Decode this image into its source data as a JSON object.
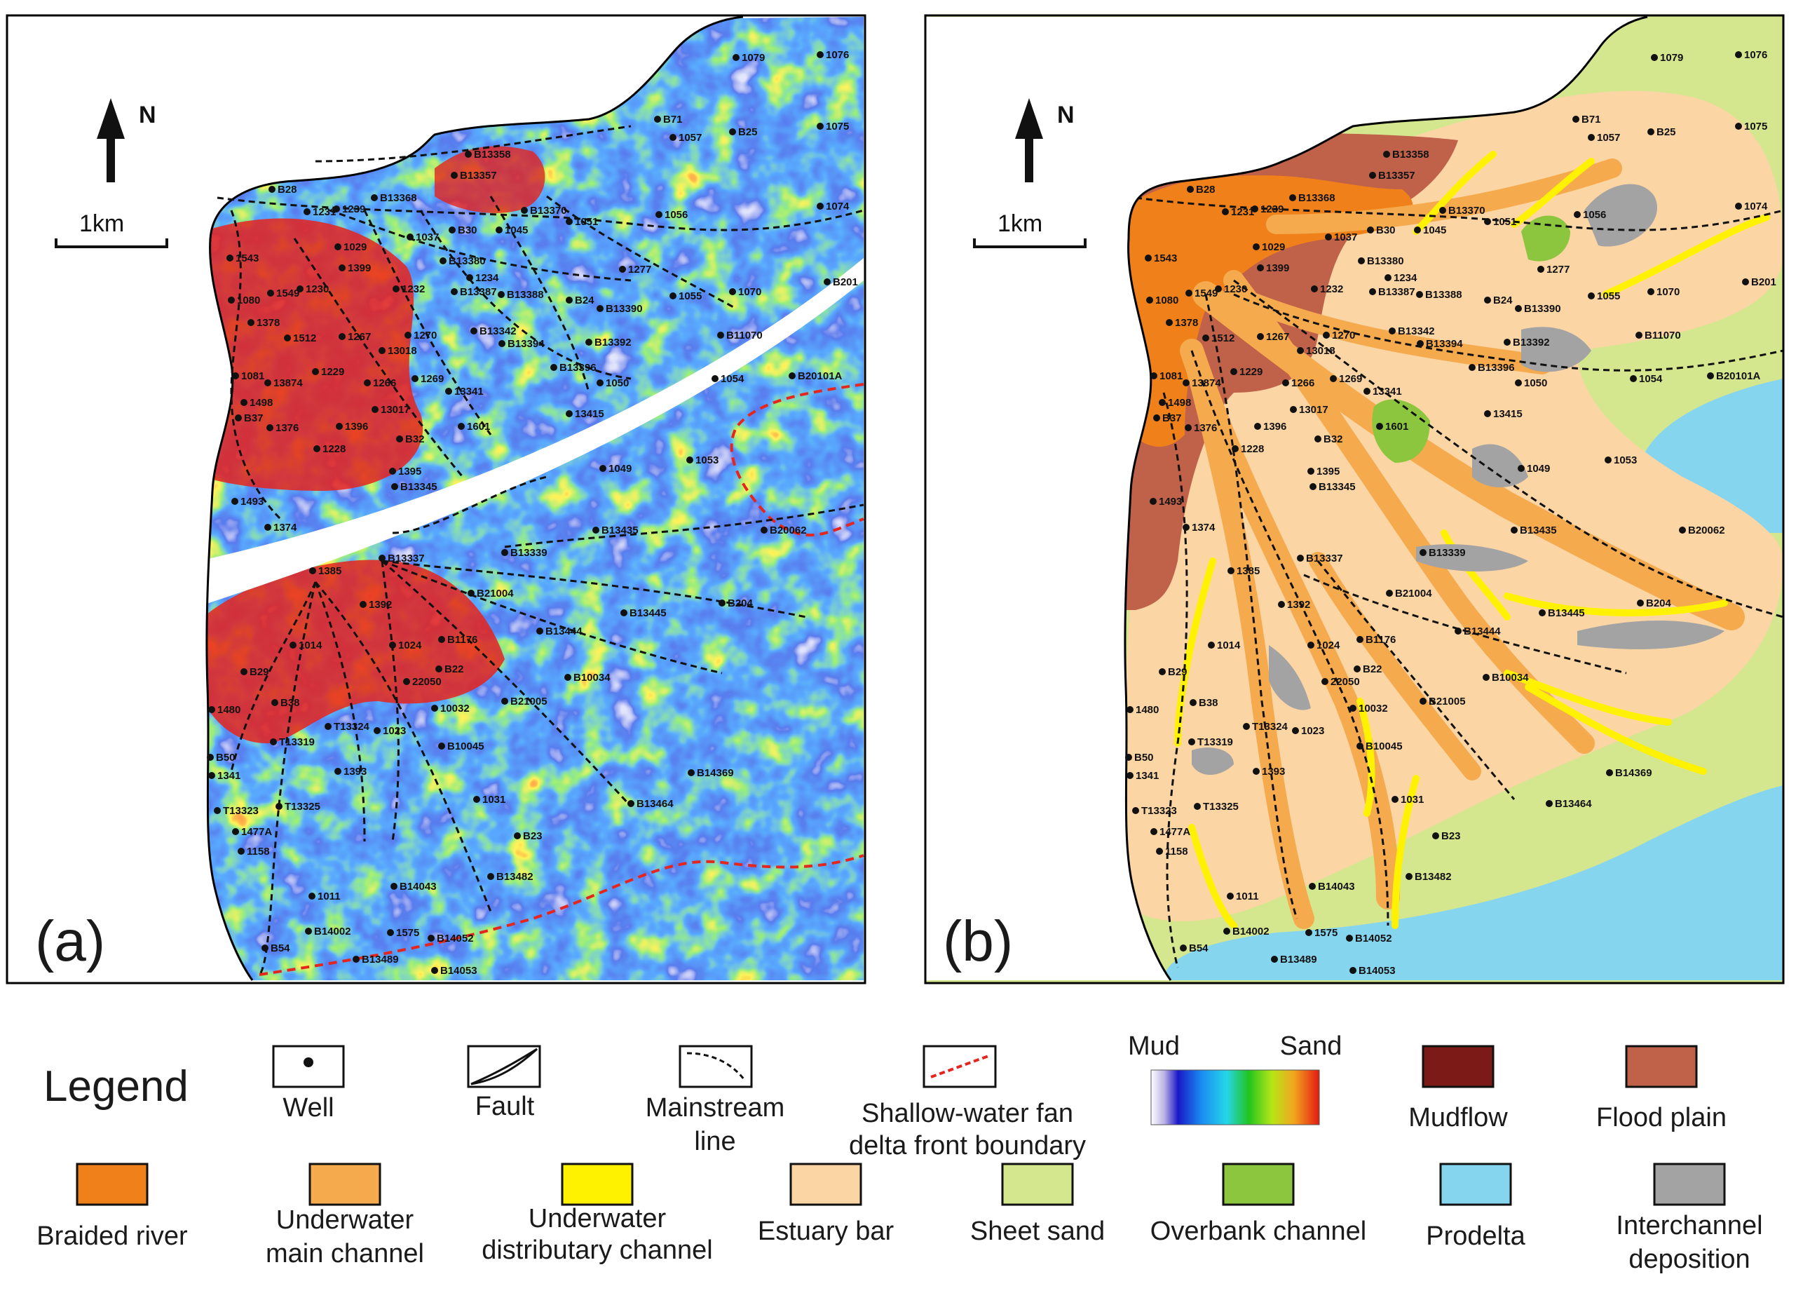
{
  "panels": {
    "a": {
      "label": "(a)"
    },
    "b": {
      "label": "(b)"
    }
  },
  "north_label": "N",
  "scale_label": "1km",
  "legend": {
    "title": "Legend",
    "symbols": {
      "well": "Well",
      "fault": "Fault",
      "mainstream": [
        "Mainstream",
        "line"
      ],
      "boundary": [
        "Shallow-water fan",
        "delta front boundary"
      ],
      "colorbar_low": "Mud",
      "colorbar_high": "Sand"
    },
    "swatches": [
      {
        "key": "mudflow",
        "label": [
          "Mudflow"
        ],
        "color": "#7b1a17"
      },
      {
        "key": "flood-plain",
        "label": [
          "Flood plain"
        ],
        "color": "#c0614a"
      },
      {
        "key": "braided-river",
        "label": [
          "Braided river"
        ],
        "color": "#f08019"
      },
      {
        "key": "underwater-main-channel",
        "label": [
          "Underwater",
          "main channel"
        ],
        "color": "#f6aa4e"
      },
      {
        "key": "underwater-distributary-channel",
        "label": [
          "Underwater",
          "distributary channel"
        ],
        "color": "#fff200"
      },
      {
        "key": "estuary-bar",
        "label": [
          "Estuary bar"
        ],
        "color": "#fcd5a5"
      },
      {
        "key": "sheet-sand",
        "label": [
          "Sheet sand"
        ],
        "color": "#d4e68e"
      },
      {
        "key": "overbank-channel",
        "label": [
          "Overbank channel"
        ],
        "color": "#8cc63f"
      },
      {
        "key": "prodelta",
        "label": [
          "Prodelta"
        ],
        "color": "#86d5ef"
      },
      {
        "key": "interchannel-deposition",
        "label": [
          "Interchannel",
          "deposition"
        ],
        "color": "#a3a3a3"
      }
    ]
  },
  "wells": [
    "1079",
    "1076",
    "B71",
    "1057",
    "B25",
    "1075",
    "B13358",
    "B13357",
    "B28",
    "B13368",
    "1231",
    "1239",
    "B13370",
    "1051",
    "1056",
    "1074",
    "B30",
    "1045",
    "1037",
    "1543",
    "1029",
    "1399",
    "B13380",
    "1234",
    "1277",
    "1232",
    "B13387",
    "B201",
    "1080",
    "1549",
    "1230",
    "B13388",
    "B24",
    "B13390",
    "1055",
    "1070",
    "1378",
    "1512",
    "1267",
    "1270",
    "B13342",
    "B13394",
    "B13392",
    "B11070",
    "13018",
    "1081",
    "1229",
    "13874",
    "1266",
    "1269",
    "13341",
    "B13396",
    "1050",
    "1054",
    "B20101A",
    "1498",
    "B37",
    "1376",
    "1396",
    "13017",
    "13415",
    "1601",
    "B32",
    "1228",
    "1395",
    "B13345",
    "1049",
    "1053",
    "1493",
    "1374",
    "B13435",
    "B20062",
    "1385",
    "B13337",
    "B13339",
    "1392",
    "B21004",
    "B13445",
    "B204",
    "B13444",
    "1014",
    "1024",
    "B1176",
    "B29",
    "B22",
    "22050",
    "B10034",
    "B38",
    "10032",
    "B21005",
    "1480",
    "T13319",
    "T13324",
    "1023",
    "B10045",
    "B50",
    "1341",
    "1393",
    "B14369",
    "T13323",
    "T13325",
    "1031",
    "B13464",
    "1477A",
    "B23",
    "1158",
    "B13482",
    "1011",
    "B14043",
    "B14002",
    "1575",
    "B14052",
    "B54",
    "B13489",
    "B14053"
  ]
}
